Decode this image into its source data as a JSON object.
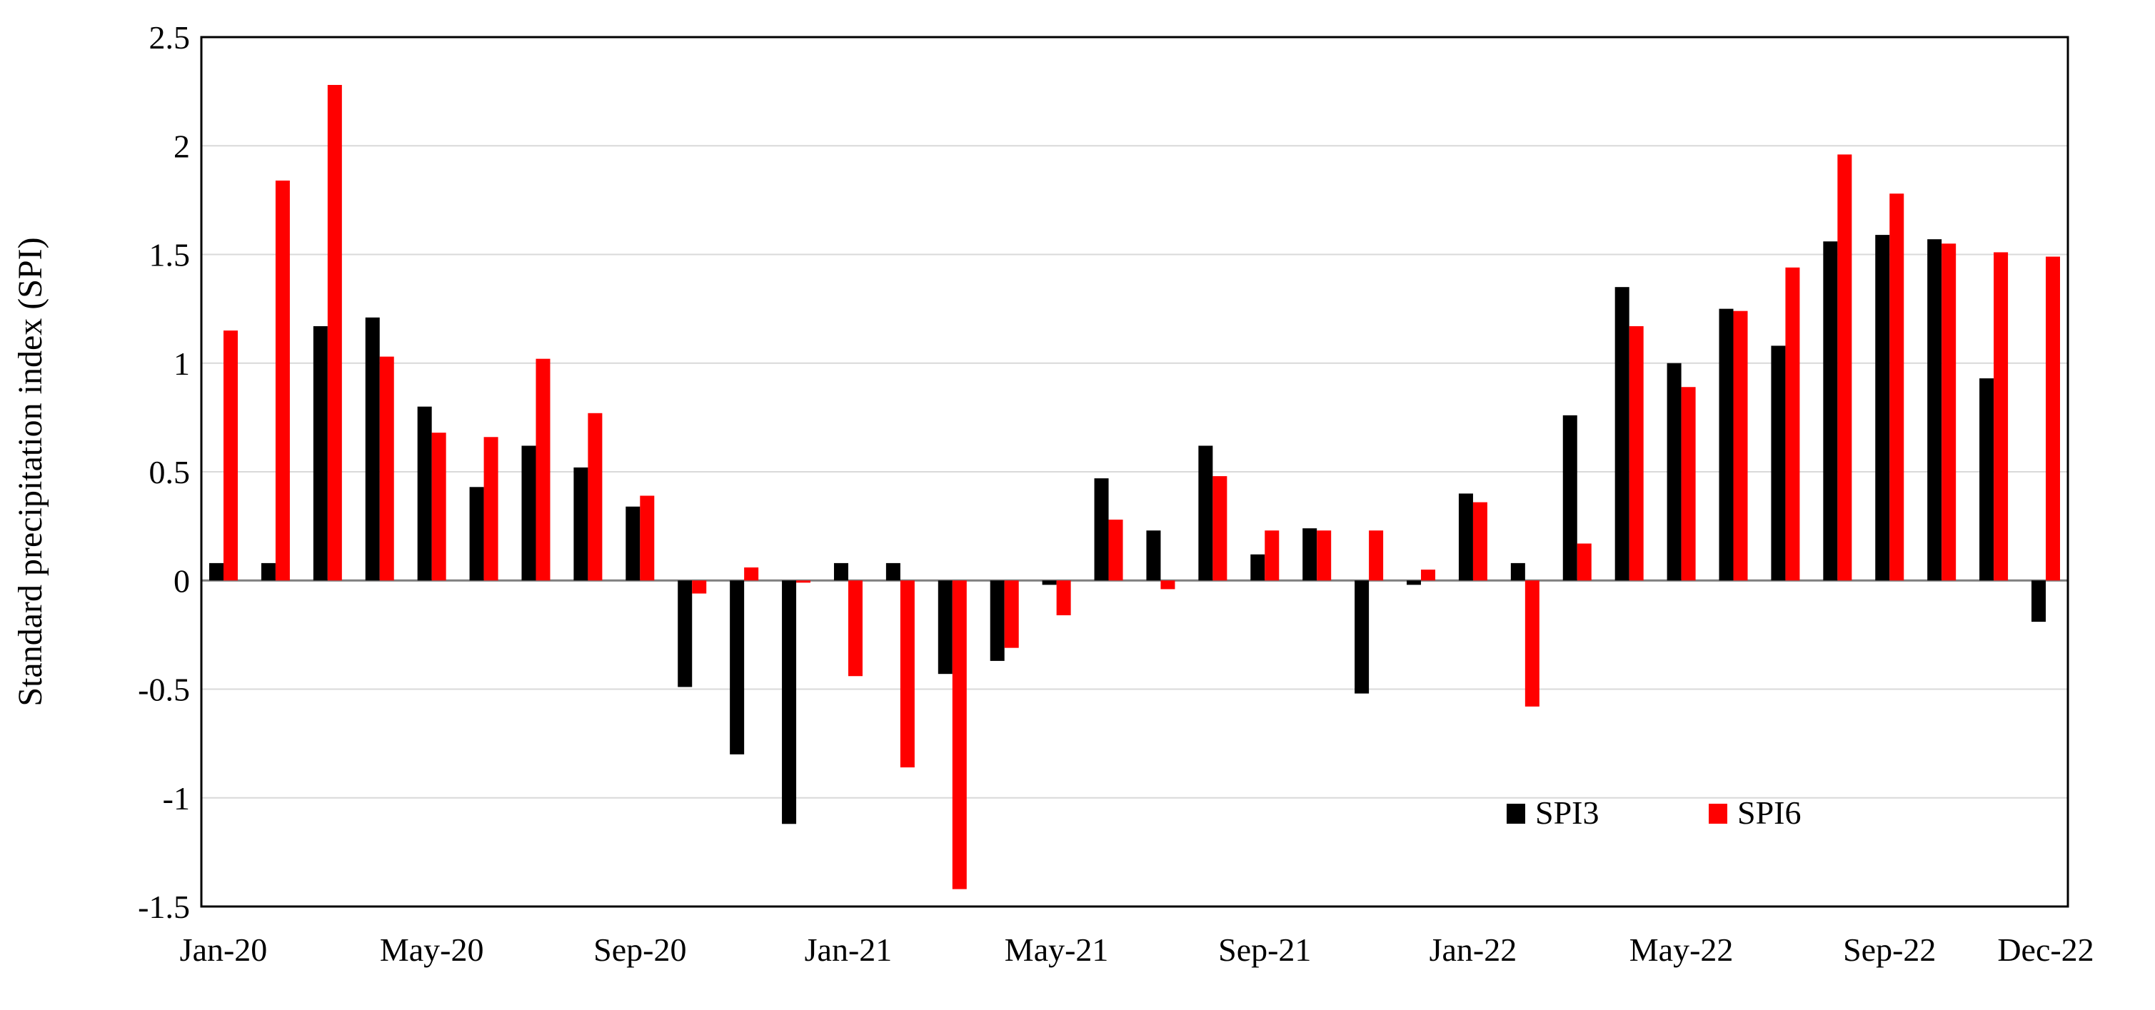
{
  "chart_data": {
    "type": "bar",
    "ylabel": "Standard precipitation index (SPI)",
    "xlabel": "",
    "ylim": [
      -1.5,
      2.5
    ],
    "yticks": [
      -1.5,
      -1,
      -0.5,
      0,
      0.5,
      1,
      1.5,
      2,
      2.5
    ],
    "ytick_labels": [
      "-1.5",
      "-1",
      "-0.5",
      "0",
      "0.5",
      "1",
      "1.5",
      "2",
      "2.5"
    ],
    "grid": "horizontal",
    "legend_position": "bottom-right",
    "categories": [
      "Jan-20",
      "Feb-20",
      "Mar-20",
      "Apr-20",
      "May-20",
      "Jun-20",
      "Jul-20",
      "Aug-20",
      "Sep-20",
      "Oct-20",
      "Nov-20",
      "Dec-20",
      "Jan-21",
      "Feb-21",
      "Mar-21",
      "Apr-21",
      "May-21",
      "Jun-21",
      "Jul-21",
      "Aug-21",
      "Sep-21",
      "Oct-21",
      "Nov-21",
      "Dec-21",
      "Jan-22",
      "Feb-22",
      "Mar-22",
      "Apr-22",
      "May-22",
      "Jun-22",
      "Jul-22",
      "Aug-22",
      "Sep-22",
      "Oct-22",
      "Nov-22",
      "Dec-22"
    ],
    "x_tick_labels": [
      {
        "label": "Jan-20",
        "index": 0
      },
      {
        "label": "May-20",
        "index": 4
      },
      {
        "label": "Sep-20",
        "index": 8
      },
      {
        "label": "Jan-21",
        "index": 12
      },
      {
        "label": "May-21",
        "index": 16
      },
      {
        "label": "Sep-21",
        "index": 20
      },
      {
        "label": "Jan-22",
        "index": 24
      },
      {
        "label": "May-22",
        "index": 28
      },
      {
        "label": "Sep-22",
        "index": 32
      },
      {
        "label": "Dec-22",
        "index": 35
      }
    ],
    "series": [
      {
        "name": "SPI3",
        "color": "#000000",
        "values": [
          0.08,
          0.08,
          1.17,
          1.21,
          0.8,
          0.43,
          0.62,
          0.52,
          0.34,
          -0.49,
          -0.8,
          -1.12,
          0.08,
          0.08,
          -0.43,
          -0.37,
          -0.02,
          0.47,
          0.23,
          0.62,
          0.12,
          0.24,
          -0.52,
          -0.02,
          0.4,
          0.08,
          0.76,
          1.35,
          1.0,
          1.25,
          1.08,
          1.56,
          1.59,
          1.57,
          0.93,
          -0.19
        ]
      },
      {
        "name": "SPI6",
        "color": "#ff0000",
        "values": [
          1.15,
          1.84,
          2.28,
          1.03,
          0.68,
          0.66,
          1.02,
          0.77,
          0.39,
          -0.06,
          0.06,
          -0.01,
          -0.44,
          -0.86,
          -1.42,
          -0.31,
          -0.16,
          0.28,
          -0.04,
          0.48,
          0.23,
          0.23,
          0.23,
          0.05,
          0.36,
          -0.58,
          0.17,
          1.17,
          0.89,
          1.24,
          1.44,
          1.96,
          1.78,
          1.55,
          1.51,
          1.49
        ]
      }
    ]
  }
}
